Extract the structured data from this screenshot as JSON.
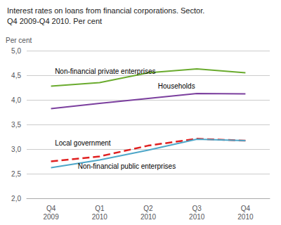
{
  "chart_data": {
    "type": "line",
    "title": "Interest rates on loans from financial corporations. Sector.",
    "subtitle": "Q4 2009-Q4 2010. Per cent",
    "ylabel": "Per cent",
    "categories": [
      "Q4\n2009",
      "Q1\n2010",
      "Q2\n2010",
      "Q3\n2010",
      "Q4\n2010"
    ],
    "series": [
      {
        "color": "#6aab2e",
        "line_style": "solid",
        "values": [
          4.28,
          4.35,
          4.55,
          4.63,
          4.55
        ]
      },
      {
        "color": "#7b3f9e",
        "line_style": "solid",
        "values": [
          3.82,
          3.93,
          4.03,
          4.13,
          4.12
        ]
      },
      {
        "color": "#e02020",
        "line_style": "dashed",
        "values": [
          2.75,
          2.85,
          3.07,
          3.21,
          3.17
        ]
      },
      {
        "color": "#4da6c8",
        "line_style": "solid",
        "values": [
          2.62,
          2.78,
          2.98,
          3.2,
          3.17
        ]
      }
    ],
    "annotations": [
      {
        "text": "Non-financial private enterprises",
        "x": 0.08,
        "y": 4.5
      },
      {
        "text": "Households",
        "x": 2.2,
        "y": 4.19
      },
      {
        "text": "Local government",
        "x": 0.08,
        "y": 3.04
      },
      {
        "text": "Non-financial public enterprises",
        "x": 0.55,
        "y": 2.56
      }
    ],
    "ylim": [
      2.0,
      5.0
    ],
    "yticks": [
      {
        "value": 2.0,
        "label": "2,0"
      },
      {
        "value": 2.5,
        "label": "2,5"
      },
      {
        "value": 3.0,
        "label": "3,0"
      },
      {
        "value": 3.5,
        "label": "3,5"
      },
      {
        "value": 4.0,
        "label": "4,0"
      },
      {
        "value": 4.5,
        "label": "4,5"
      },
      {
        "value": 5.0,
        "label": "5,0"
      }
    ],
    "grid": true
  }
}
